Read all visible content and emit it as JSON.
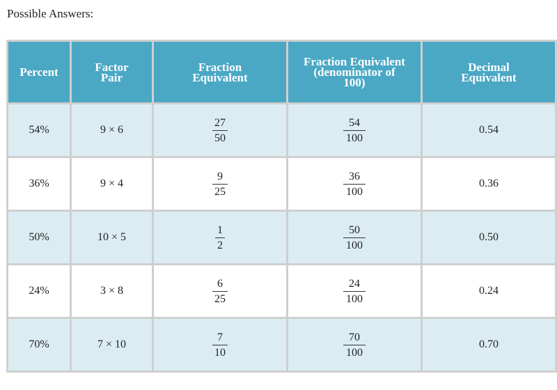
{
  "caption": "Possible Answers:",
  "columns": [
    "Percent",
    "Factor Pair",
    "Fraction Equivalent",
    "Fraction Equivalent (denominator of 100)",
    "Decimal Equivalent"
  ],
  "header_lines": [
    [
      "Percent"
    ],
    [
      "Factor",
      "Pair"
    ],
    [
      "Fraction",
      "Equivalent"
    ],
    [
      "Fraction Equivalent",
      "(denominator of",
      "100)"
    ],
    [
      "Decimal",
      "Equivalent"
    ]
  ],
  "rows": [
    {
      "percent": "54%",
      "factor_pair": "9 × 6",
      "fraction": {
        "num": "27",
        "den": "50"
      },
      "fraction_100": {
        "num": "54",
        "den": "100"
      },
      "decimal": "0.54"
    },
    {
      "percent": "36%",
      "factor_pair": "9 × 4",
      "fraction": {
        "num": "9",
        "den": "25"
      },
      "fraction_100": {
        "num": "36",
        "den": "100"
      },
      "decimal": "0.36"
    },
    {
      "percent": "50%",
      "factor_pair": "10 × 5",
      "fraction": {
        "num": "1",
        "den": "2"
      },
      "fraction_100": {
        "num": "50",
        "den": "100"
      },
      "decimal": "0.50"
    },
    {
      "percent": "24%",
      "factor_pair": "3 × 8",
      "fraction": {
        "num": "6",
        "den": "25"
      },
      "fraction_100": {
        "num": "24",
        "den": "100"
      },
      "decimal": "0.24"
    },
    {
      "percent": "70%",
      "factor_pair": "7 × 10",
      "fraction": {
        "num": "7",
        "den": "10"
      },
      "fraction_100": {
        "num": "70",
        "den": "100"
      },
      "decimal": "0.70"
    }
  ],
  "colors": {
    "header_bg": "#4aa8c4",
    "header_text": "#ffffff",
    "row_shaded": "#dbedf3",
    "row_plain": "#ffffff",
    "border": "#cfcfcf"
  }
}
